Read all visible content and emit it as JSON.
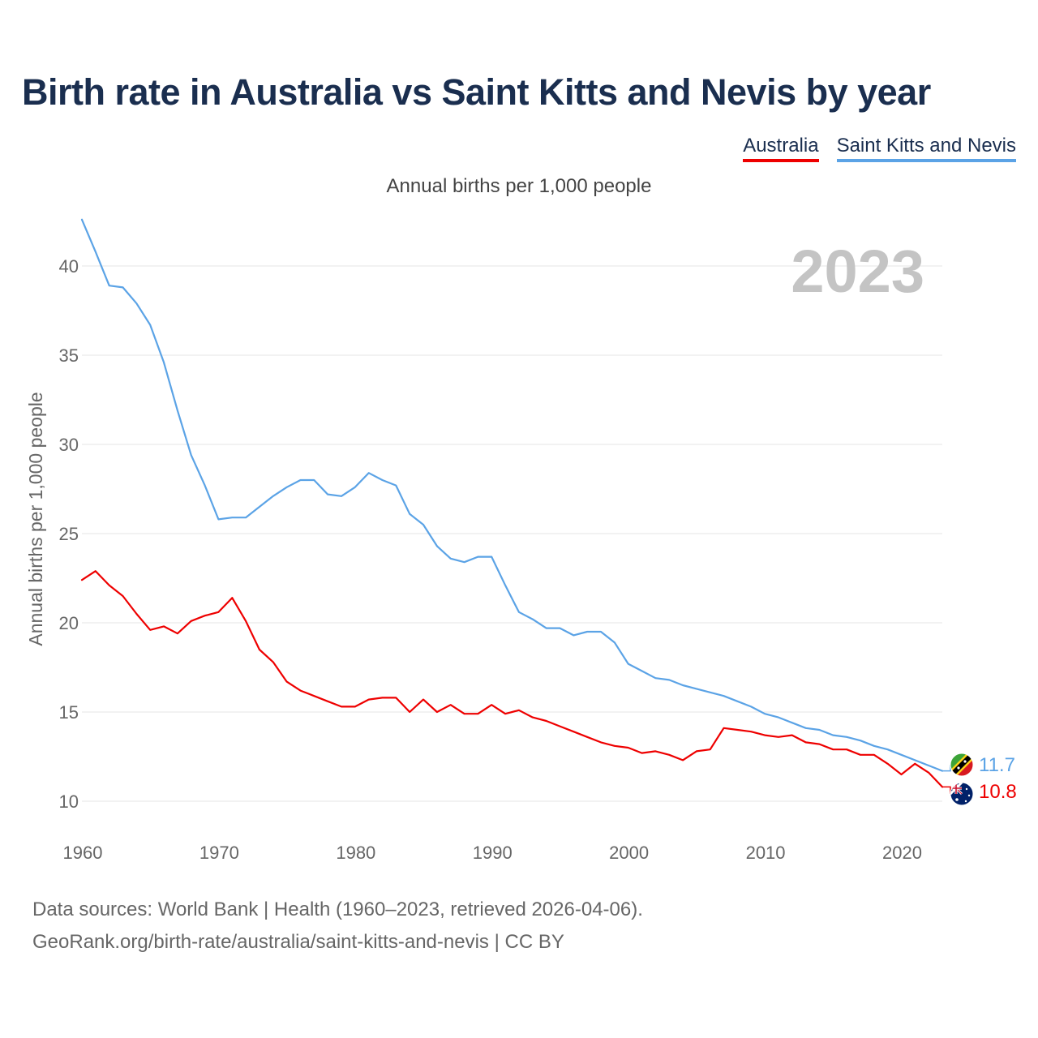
{
  "title": "Birth rate in Australia vs Saint Kitts and Nevis by year",
  "legend": [
    {
      "label": "Australia",
      "color": "#ee0000"
    },
    {
      "label": "Saint Kitts and Nevis",
      "color": "#5ba3e6"
    }
  ],
  "subtitle": "Annual births per 1,000 people",
  "source_line1": "Data sources: World Bank | Health (1960–2023, retrieved 2026-04-06).",
  "source_line2": "GeoRank.org/birth-rate/australia/saint-kitts-and-nevis | CC BY",
  "chart_data": {
    "type": "line",
    "title": "Birth rate in Australia vs Saint Kitts and Nevis by year",
    "ylabel": "Annual births per 1,000 people",
    "xlabel": "",
    "year_label": "2023",
    "xlim": [
      1960,
      2023
    ],
    "ylim": [
      9,
      43
    ],
    "x_ticks": [
      1960,
      1970,
      1980,
      1990,
      2000,
      2010,
      2020
    ],
    "y_ticks": [
      10,
      15,
      20,
      25,
      30,
      35,
      40
    ],
    "grid": true,
    "x": [
      1960,
      1961,
      1962,
      1963,
      1964,
      1965,
      1966,
      1967,
      1968,
      1969,
      1970,
      1971,
      1972,
      1973,
      1974,
      1975,
      1976,
      1977,
      1978,
      1979,
      1980,
      1981,
      1982,
      1983,
      1984,
      1985,
      1986,
      1987,
      1988,
      1989,
      1990,
      1991,
      1992,
      1993,
      1994,
      1995,
      1996,
      1997,
      1998,
      1999,
      2000,
      2001,
      2002,
      2003,
      2004,
      2005,
      2006,
      2007,
      2008,
      2009,
      2010,
      2011,
      2012,
      2013,
      2014,
      2015,
      2016,
      2017,
      2018,
      2019,
      2020,
      2021,
      2022,
      2023
    ],
    "series": [
      {
        "name": "Australia",
        "color": "#ee0000",
        "end_label": "10.8",
        "values": [
          22.4,
          22.9,
          22.1,
          21.5,
          20.5,
          19.6,
          19.8,
          19.4,
          20.1,
          20.4,
          20.6,
          21.4,
          20.1,
          18.5,
          17.8,
          16.7,
          16.2,
          15.9,
          15.6,
          15.3,
          15.3,
          15.7,
          15.8,
          15.8,
          15.0,
          15.7,
          15.0,
          15.4,
          14.9,
          14.9,
          15.4,
          14.9,
          15.1,
          14.7,
          14.5,
          14.2,
          13.9,
          13.6,
          13.3,
          13.1,
          13.0,
          12.7,
          12.8,
          12.6,
          12.3,
          12.8,
          12.9,
          14.1,
          14.0,
          13.9,
          13.7,
          13.6,
          13.7,
          13.3,
          13.2,
          12.9,
          12.9,
          12.6,
          12.6,
          12.1,
          11.5,
          12.1,
          11.6,
          10.8
        ]
      },
      {
        "name": "Saint Kitts and Nevis",
        "color": "#5ba3e6",
        "end_label": "11.7",
        "values": [
          42.6,
          40.8,
          38.9,
          38.8,
          37.9,
          36.7,
          34.6,
          31.9,
          29.4,
          27.7,
          25.8,
          25.9,
          25.9,
          26.5,
          27.1,
          27.6,
          28.0,
          28.0,
          27.2,
          27.1,
          27.6,
          28.4,
          28.0,
          27.7,
          26.1,
          25.5,
          24.3,
          23.6,
          23.4,
          23.7,
          23.7,
          22.1,
          20.6,
          20.2,
          19.7,
          19.7,
          19.3,
          19.5,
          19.5,
          18.9,
          17.7,
          17.3,
          16.9,
          16.8,
          16.5,
          16.3,
          16.1,
          15.9,
          15.6,
          15.3,
          14.9,
          14.7,
          14.4,
          14.1,
          14.0,
          13.7,
          13.6,
          13.4,
          13.1,
          12.9,
          12.6,
          12.3,
          12.0,
          11.7
        ]
      }
    ]
  }
}
